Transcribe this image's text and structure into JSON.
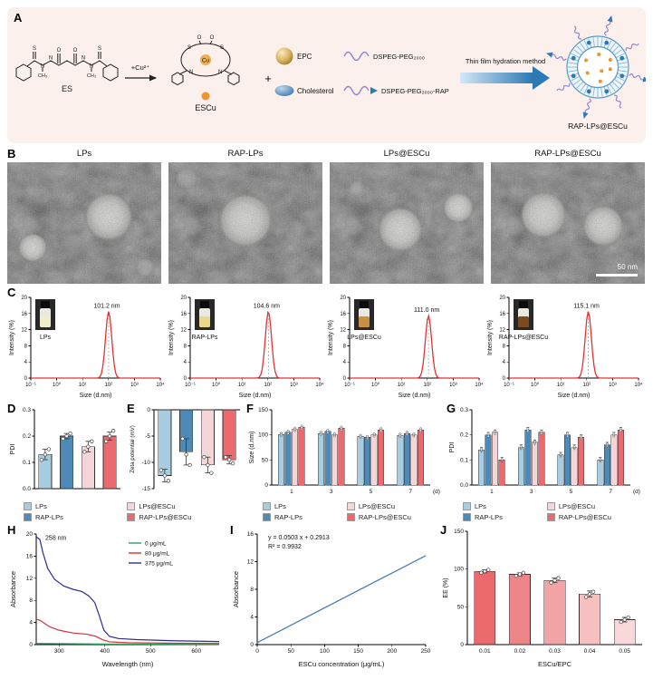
{
  "labels": {
    "A": "A",
    "B": "B",
    "C": "C",
    "D": "D",
    "E": "E",
    "F": "F",
    "G": "G",
    "H": "H",
    "I": "I",
    "J": "J"
  },
  "panelA": {
    "es_label": "ES",
    "cu_arrow_label": "+Cu²⁺",
    "escu_label": "ESCu",
    "plus_sign": "+",
    "epc_label": "EPC",
    "chol_label": "Cholesterol",
    "dspe_label": "DSPEG-PEG₂₀₀₀",
    "dspe_rap_label": "DSPEG-PEG₂₀₀₀-RAP",
    "method_label": "Thin film hydration method",
    "product_label": "RAP-LPs@ESCu",
    "atoms_es": [
      "S",
      "O",
      "O",
      "S",
      "N",
      "N",
      "N",
      "N",
      "CH₃",
      "CH₃"
    ],
    "atoms_escu": [
      "S",
      "S",
      "N",
      "N",
      "O",
      "O",
      "Cu"
    ]
  },
  "panelB": {
    "labels": [
      "LPs",
      "RAP-LPs",
      "LPs@ESCu",
      "RAP-LPs@ESCu"
    ],
    "scalebar": "50 nm"
  },
  "group_legend": {
    "items": [
      {
        "label": "LPs",
        "color": "#a9cde0"
      },
      {
        "label": "LPs@ESCu",
        "color": "#f4d6d9"
      },
      {
        "label": "RAP-LPs",
        "color": "#4d8ab8"
      },
      {
        "label": "RAP-LPs@ESCu",
        "color": "#ec6a6d"
      }
    ]
  },
  "chart_data": [
    {
      "id": "C1",
      "type": "dls",
      "peak_label": "101.2 nm",
      "peak_nm": 101.2,
      "peak_intensity": 16.5,
      "inset_label": "LPs",
      "inset_liquid": "#f1ecca",
      "curve_color": "#e63232",
      "xlabel": "Size (d.nm)",
      "ylabel": "Intensity (%)",
      "xticks": [
        "10⁻¹",
        "10⁰",
        "10¹",
        "10²",
        "10³",
        "10⁴"
      ],
      "yticks": [
        0,
        4,
        8,
        12,
        16,
        20
      ],
      "ylim": [
        0,
        20
      ]
    },
    {
      "id": "C2",
      "type": "dls",
      "peak_label": "104.6 nm",
      "peak_nm": 104.6,
      "peak_intensity": 16.5,
      "inset_label": "RAP-LPs",
      "inset_liquid": "#ead98b",
      "curve_color": "#e63232",
      "xlabel": "Size (d.nm)",
      "ylabel": "Intensity (%)",
      "xticks": [
        "10⁻¹",
        "10⁰",
        "10¹",
        "10²",
        "10³",
        "10⁴"
      ],
      "yticks": [
        0,
        4,
        8,
        12,
        16,
        20
      ],
      "ylim": [
        0,
        20
      ]
    },
    {
      "id": "C3",
      "type": "dls",
      "peak_label": "111.0 nm",
      "peak_nm": 111.0,
      "peak_intensity": 15.5,
      "inset_label": "LPs@ESCu",
      "inset_liquid": "#c9913f",
      "curve_color": "#e63232",
      "xlabel": "Size (d.nm)",
      "ylabel": "Intensity (%)",
      "xticks": [
        "10⁻¹",
        "10⁰",
        "10¹",
        "10²",
        "10³",
        "10⁴"
      ],
      "yticks": [
        0,
        4,
        8,
        12,
        16,
        20
      ],
      "ylim": [
        0,
        20
      ]
    },
    {
      "id": "C4",
      "type": "dls",
      "peak_label": "115.1 nm",
      "peak_nm": 115.1,
      "peak_intensity": 16.5,
      "inset_label": "RAP-LPs@ESCu",
      "inset_liquid": "#7b4b1e",
      "curve_color": "#e63232",
      "xlabel": "Size (d.nm)",
      "ylabel": "Intensity (%)",
      "xticks": [
        "10⁻¹",
        "10⁰",
        "10¹",
        "10²",
        "10³",
        "10⁴"
      ],
      "yticks": [
        0,
        4,
        8,
        12,
        16,
        20
      ],
      "ylim": [
        0,
        20
      ]
    },
    {
      "id": "D",
      "type": "bar",
      "ylabel": "PDI",
      "ylim": [
        0,
        0.3
      ],
      "yticks": [
        0,
        0.1,
        0.2,
        0.3
      ],
      "ytick_labels": [
        "0.0",
        "0.1",
        "0.2",
        "0.3"
      ],
      "categories": [
        "LPs",
        "RAP-LPs",
        "LPs@ESCu",
        "RAP-LPs@ESCu"
      ],
      "values": [
        0.13,
        0.2,
        0.16,
        0.2
      ],
      "errors": [
        0.02,
        0.01,
        0.02,
        0.015
      ],
      "points": [
        [
          0.11,
          0.13,
          0.15
        ],
        [
          0.19,
          0.2,
          0.21
        ],
        [
          0.14,
          0.16,
          0.18
        ],
        [
          0.18,
          0.2,
          0.22
        ]
      ],
      "colors": [
        "#a9cde0",
        "#4d8ab8",
        "#f4d6d9",
        "#ec6a6d"
      ]
    },
    {
      "id": "E",
      "type": "bar",
      "ylabel": "Zeta potential (mV)",
      "ylim": [
        -15,
        0
      ],
      "yticks": [
        0,
        -5,
        -10,
        -15
      ],
      "ytick_labels": [
        "0",
        "-5",
        "-10",
        "-15"
      ],
      "categories": [
        "LPs",
        "RAP-LPs",
        "LPs@ESCu",
        "RAP-LPs@ESCu"
      ],
      "values": [
        -12.5,
        -8,
        -10.5,
        -9.5
      ],
      "errors": [
        1.2,
        2.5,
        1.5,
        0.8
      ],
      "points": [
        [
          -11.5,
          -12.5,
          -13.5
        ],
        [
          -5.5,
          -8.5,
          -10.5
        ],
        [
          -9,
          -10.5,
          -12
        ],
        [
          -9,
          -9.5,
          -10.2
        ]
      ],
      "colors": [
        "#a9cde0",
        "#4d8ab8",
        "#f4d6d9",
        "#ec6a6d"
      ]
    },
    {
      "id": "F",
      "type": "groupedbar",
      "ylabel": "Size (d.nm)",
      "ylim": [
        0,
        150
      ],
      "yticks": [
        0,
        50,
        100,
        150
      ],
      "categories": [
        "1",
        "3",
        "5",
        "7"
      ],
      "xunit": "(d)",
      "series": [
        {
          "name": "LPs",
          "color": "#a9cde0",
          "values": [
            101,
            103,
            97,
            99
          ]
        },
        {
          "name": "RAP-LPs",
          "color": "#4d8ab8",
          "values": [
            105,
            107,
            95,
            103
          ]
        },
        {
          "name": "LPs@ESCu",
          "color": "#f4d6d9",
          "values": [
            111,
            100,
            100,
            100
          ]
        },
        {
          "name": "RAP-LPs@ESCu",
          "color": "#ec6a6d",
          "values": [
            115,
            113,
            110,
            110
          ]
        }
      ]
    },
    {
      "id": "G",
      "type": "groupedbar",
      "ylabel": "PDI",
      "ylim": [
        0,
        0.3
      ],
      "yticks": [
        0,
        0.1,
        0.2,
        0.3
      ],
      "ytick_labels": [
        "0.0",
        "0.1",
        "0.2",
        "0.3"
      ],
      "categories": [
        "1",
        "3",
        "5",
        "7"
      ],
      "xunit": "(d)",
      "series": [
        {
          "name": "LPs",
          "color": "#a9cde0",
          "values": [
            0.14,
            0.15,
            0.12,
            0.1
          ]
        },
        {
          "name": "RAP-LPs",
          "color": "#4d8ab8",
          "values": [
            0.2,
            0.22,
            0.2,
            0.16
          ]
        },
        {
          "name": "LPs@ESCu",
          "color": "#f4d6d9",
          "values": [
            0.21,
            0.17,
            0.15,
            0.2
          ]
        },
        {
          "name": "RAP-LPs@ESCu",
          "color": "#ec6a6d",
          "values": [
            0.1,
            0.21,
            0.19,
            0.22
          ]
        }
      ]
    },
    {
      "id": "H",
      "type": "spectra",
      "ylabel": "Absorbance",
      "xlabel": "Wavelength (nm)",
      "xlim": [
        250,
        650
      ],
      "xticks": [
        300,
        400,
        500,
        600
      ],
      "ylim": [
        0,
        20
      ],
      "yticks": [
        0,
        4,
        8,
        12,
        16,
        20
      ],
      "annotation": "258 nm",
      "series": [
        {
          "name": "0 μg/mL",
          "color": "#2ca05a",
          "points": [
            [
              250,
              0.2
            ],
            [
              400,
              0.1
            ],
            [
              650,
              0.05
            ]
          ]
        },
        {
          "name": "80 μg/mL",
          "color": "#d93036",
          "points": [
            [
              250,
              4.6
            ],
            [
              258,
              4.4
            ],
            [
              280,
              3.2
            ],
            [
              300,
              2.6
            ],
            [
              330,
              2.1
            ],
            [
              360,
              1.9
            ],
            [
              380,
              1.5
            ],
            [
              395,
              0.9
            ],
            [
              410,
              0.5
            ],
            [
              450,
              0.35
            ],
            [
              550,
              0.25
            ],
            [
              650,
              0.2
            ]
          ]
        },
        {
          "name": "375 μg/mL",
          "color": "#2b2f8f",
          "points": [
            [
              250,
              19.5
            ],
            [
              258,
              19.0
            ],
            [
              265,
              16.5
            ],
            [
              275,
              13.8
            ],
            [
              290,
              11.8
            ],
            [
              310,
              10.6
            ],
            [
              330,
              10.0
            ],
            [
              350,
              9.6
            ],
            [
              365,
              8.8
            ],
            [
              378,
              7.6
            ],
            [
              388,
              5.2
            ],
            [
              398,
              2.6
            ],
            [
              410,
              1.5
            ],
            [
              430,
              1.1
            ],
            [
              470,
              0.9
            ],
            [
              550,
              0.7
            ],
            [
              650,
              0.55
            ]
          ]
        }
      ]
    },
    {
      "id": "I",
      "type": "fitline",
      "ylabel": "Absorbance",
      "xlabel": "ESCu concentration (μg/mL)",
      "xlim": [
        0,
        250
      ],
      "xticks": [
        0,
        50,
        100,
        150,
        200,
        250
      ],
      "ylim": [
        0,
        16
      ],
      "yticks": [
        0,
        4,
        8,
        12,
        16
      ],
      "slope": 0.0503,
      "intercept": 0.2913,
      "equation": "y = 0.0503 x + 0.2913",
      "r2": "R² = 0.9932",
      "line_color": "#4a7fb5"
    },
    {
      "id": "J",
      "type": "bar",
      "ylabel": "EE (%)",
      "xlabel": "ESCu/EPC",
      "ylim": [
        0,
        150
      ],
      "yticks": [
        0,
        50,
        100,
        150
      ],
      "ytick_labels": [
        "0",
        "50",
        "100",
        "150"
      ],
      "show_xticks": true,
      "categories": [
        "0.01",
        "0.02",
        "0.03",
        "0.04",
        "0.05"
      ],
      "values": [
        97,
        93,
        85,
        67,
        33
      ],
      "errors": [
        2,
        2,
        3,
        4,
        3
      ],
      "points": [
        [
          95,
          97,
          99
        ],
        [
          91,
          93,
          95
        ],
        [
          82,
          85,
          88
        ],
        [
          63,
          67,
          70
        ],
        [
          30,
          33,
          36
        ]
      ],
      "colors": [
        "#ea6a6e",
        "#ee8689",
        "#f2a3a5",
        "#f6bfc0",
        "#f9d8d9"
      ]
    }
  ]
}
